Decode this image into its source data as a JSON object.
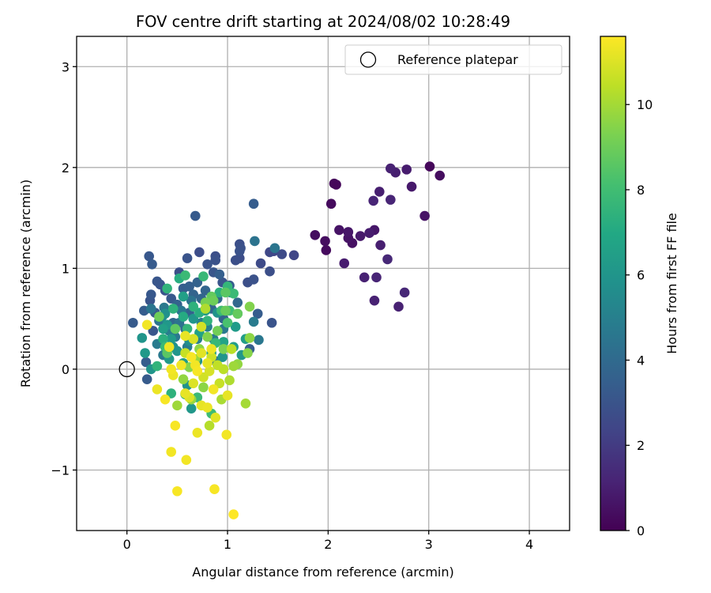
{
  "chart_data": {
    "type": "scatter",
    "title": "FOV centre drift starting at 2024/08/02 10:28:49",
    "xlabel": "Angular distance from reference (arcmin)",
    "ylabel": "Rotation from reference (arcmin)",
    "xlim": [
      -0.5,
      4.4
    ],
    "ylim": [
      -1.6,
      3.3
    ],
    "xticks": [
      0,
      1,
      2,
      3,
      4
    ],
    "xtick_labels": [
      "0",
      "1",
      "2",
      "3",
      "4"
    ],
    "yticks": [
      -1,
      0,
      1,
      2,
      3
    ],
    "ytick_labels": [
      "−1",
      "0",
      "1",
      "2",
      "3"
    ],
    "grid": true,
    "legend": {
      "placement": "top-right",
      "entries": [
        "Reference platepar"
      ]
    },
    "reference_point": {
      "label": "Reference platepar",
      "x": 0,
      "y": 0
    },
    "colorbar": {
      "label": "Hours from first FF file",
      "colormap": "viridis",
      "range": [
        0,
        11.6
      ],
      "ticks": [
        0,
        2,
        4,
        6,
        8,
        10
      ],
      "tick_labels": [
        "0",
        "2",
        "4",
        "6",
        "8",
        "10"
      ]
    },
    "points": [
      {
        "x": 1.87,
        "y": 1.33,
        "h": 0.4
      },
      {
        "x": 1.97,
        "y": 1.27,
        "h": 0.4
      },
      {
        "x": 1.98,
        "y": 1.18,
        "h": 0.3
      },
      {
        "x": 2.03,
        "y": 1.64,
        "h": 0.3
      },
      {
        "x": 2.06,
        "y": 1.84,
        "h": 0.2
      },
      {
        "x": 2.08,
        "y": 1.83,
        "h": 0.2
      },
      {
        "x": 2.11,
        "y": 1.38,
        "h": 0.6
      },
      {
        "x": 2.16,
        "y": 1.05,
        "h": 0.9
      },
      {
        "x": 2.2,
        "y": 1.36,
        "h": 0.7
      },
      {
        "x": 2.2,
        "y": 1.3,
        "h": 0.6
      },
      {
        "x": 2.24,
        "y": 1.25,
        "h": 0.5
      },
      {
        "x": 2.32,
        "y": 1.32,
        "h": 0.8
      },
      {
        "x": 2.36,
        "y": 0.91,
        "h": 1.1
      },
      {
        "x": 2.41,
        "y": 1.35,
        "h": 0.9
      },
      {
        "x": 2.46,
        "y": 1.38,
        "h": 0.7
      },
      {
        "x": 2.45,
        "y": 1.67,
        "h": 1.2
      },
      {
        "x": 2.46,
        "y": 0.68,
        "h": 1.1
      },
      {
        "x": 2.48,
        "y": 0.91,
        "h": 1.2
      },
      {
        "x": 2.51,
        "y": 1.76,
        "h": 1.0
      },
      {
        "x": 2.52,
        "y": 1.23,
        "h": 1.0
      },
      {
        "x": 2.59,
        "y": 1.09,
        "h": 1.3
      },
      {
        "x": 2.62,
        "y": 1.99,
        "h": 1.1
      },
      {
        "x": 2.62,
        "y": 1.68,
        "h": 1.2
      },
      {
        "x": 2.67,
        "y": 1.95,
        "h": 1.0
      },
      {
        "x": 2.7,
        "y": 0.62,
        "h": 1.1
      },
      {
        "x": 2.76,
        "y": 0.76,
        "h": 1.3
      },
      {
        "x": 2.78,
        "y": 1.98,
        "h": 0.9
      },
      {
        "x": 2.83,
        "y": 1.81,
        "h": 0.8
      },
      {
        "x": 2.96,
        "y": 1.52,
        "h": 0.6
      },
      {
        "x": 3.01,
        "y": 2.01,
        "h": 0.2
      },
      {
        "x": 3.11,
        "y": 1.92,
        "h": 0.4
      },
      {
        "x": 0.68,
        "y": 1.52,
        "h": 3.3
      },
      {
        "x": 1.26,
        "y": 1.64,
        "h": 3.4
      },
      {
        "x": 0.22,
        "y": 1.12,
        "h": 3.2
      },
      {
        "x": 0.25,
        "y": 1.04,
        "h": 3.3
      },
      {
        "x": 0.3,
        "y": 0.87,
        "h": 3.1
      },
      {
        "x": 0.33,
        "y": 0.84,
        "h": 3.0
      },
      {
        "x": 0.24,
        "y": 0.74,
        "h": 3.2
      },
      {
        "x": 0.23,
        "y": 0.68,
        "h": 3.0
      },
      {
        "x": 0.17,
        "y": 0.58,
        "h": 3.4
      },
      {
        "x": 0.06,
        "y": 0.46,
        "h": 3.3
      },
      {
        "x": 0.26,
        "y": 0.38,
        "h": 3.1
      },
      {
        "x": 0.28,
        "y": 0.56,
        "h": 3.3
      },
      {
        "x": 0.38,
        "y": 0.78,
        "h": 3.0
      },
      {
        "x": 0.44,
        "y": 0.7,
        "h": 3.2
      },
      {
        "x": 0.52,
        "y": 0.96,
        "h": 2.8
      },
      {
        "x": 0.6,
        "y": 1.1,
        "h": 3.0
      },
      {
        "x": 0.72,
        "y": 1.16,
        "h": 2.7
      },
      {
        "x": 0.8,
        "y": 1.04,
        "h": 3.0
      },
      {
        "x": 0.88,
        "y": 1.12,
        "h": 2.8
      },
      {
        "x": 0.88,
        "y": 1.08,
        "h": 2.9
      },
      {
        "x": 0.86,
        "y": 0.96,
        "h": 3.1
      },
      {
        "x": 0.95,
        "y": 0.86,
        "h": 3.0
      },
      {
        "x": 1.08,
        "y": 1.08,
        "h": 2.8
      },
      {
        "x": 1.12,
        "y": 1.17,
        "h": 2.9
      },
      {
        "x": 1.12,
        "y": 1.24,
        "h": 2.8
      },
      {
        "x": 1.13,
        "y": 1.2,
        "h": 2.9
      },
      {
        "x": 1.12,
        "y": 1.1,
        "h": 2.7
      },
      {
        "x": 1.2,
        "y": 0.86,
        "h": 2.8
      },
      {
        "x": 1.26,
        "y": 0.89,
        "h": 2.9
      },
      {
        "x": 1.33,
        "y": 1.05,
        "h": 2.6
      },
      {
        "x": 1.42,
        "y": 1.16,
        "h": 2.5
      },
      {
        "x": 1.46,
        "y": 1.17,
        "h": 2.4
      },
      {
        "x": 1.54,
        "y": 1.14,
        "h": 2.6
      },
      {
        "x": 1.66,
        "y": 1.13,
        "h": 2.4
      },
      {
        "x": 1.42,
        "y": 0.97,
        "h": 2.8
      },
      {
        "x": 1.3,
        "y": 0.55,
        "h": 3.4
      },
      {
        "x": 1.44,
        "y": 0.46,
        "h": 3.0
      },
      {
        "x": 0.19,
        "y": 0.07,
        "h": 3.4
      },
      {
        "x": 0.2,
        "y": -0.1,
        "h": 3.3
      },
      {
        "x": 0.62,
        "y": 0.82,
        "h": 3.5
      },
      {
        "x": 0.66,
        "y": 0.74,
        "h": 3.7
      },
      {
        "x": 0.74,
        "y": 0.7,
        "h": 3.8
      },
      {
        "x": 0.5,
        "y": 0.64,
        "h": 3.6
      },
      {
        "x": 0.56,
        "y": 0.8,
        "h": 3.4
      },
      {
        "x": 0.7,
        "y": 0.86,
        "h": 3.6
      },
      {
        "x": 0.78,
        "y": 0.78,
        "h": 3.7
      },
      {
        "x": 0.92,
        "y": 0.94,
        "h": 3.5
      },
      {
        "x": 1.02,
        "y": 0.83,
        "h": 3.4
      },
      {
        "x": 1.1,
        "y": 0.66,
        "h": 3.9
      },
      {
        "x": 1.22,
        "y": 0.2,
        "h": 3.5
      },
      {
        "x": 0.46,
        "y": 0.46,
        "h": 3.9
      },
      {
        "x": 0.58,
        "y": 0.4,
        "h": 3.8
      },
      {
        "x": 0.62,
        "y": 0.56,
        "h": 3.6
      },
      {
        "x": 0.9,
        "y": 0.7,
        "h": 3.9
      },
      {
        "x": 0.96,
        "y": 0.5,
        "h": 3.7
      },
      {
        "x": 0.84,
        "y": 0.6,
        "h": 3.8
      },
      {
        "x": 1.27,
        "y": 1.27,
        "h": 4.4
      },
      {
        "x": 1.47,
        "y": 1.2,
        "h": 4.5
      },
      {
        "x": 1.31,
        "y": 0.29,
        "h": 4.6
      },
      {
        "x": 1.26,
        "y": 0.47,
        "h": 4.8
      },
      {
        "x": 1.1,
        "y": 0.55,
        "h": 4.8
      },
      {
        "x": 0.37,
        "y": 0.61,
        "h": 4.7
      },
      {
        "x": 0.32,
        "y": 0.48,
        "h": 4.5
      },
      {
        "x": 0.42,
        "y": 0.38,
        "h": 4.9
      },
      {
        "x": 0.3,
        "y": 0.25,
        "h": 4.8
      },
      {
        "x": 0.36,
        "y": 0.14,
        "h": 4.7
      },
      {
        "x": 0.54,
        "y": 0.58,
        "h": 4.6
      },
      {
        "x": 0.64,
        "y": 0.68,
        "h": 4.4
      },
      {
        "x": 0.74,
        "y": 0.46,
        "h": 4.9
      },
      {
        "x": 0.8,
        "y": 0.42,
        "h": 5.0
      },
      {
        "x": 0.86,
        "y": 0.3,
        "h": 4.8
      },
      {
        "x": 0.96,
        "y": 0.4,
        "h": 4.7
      },
      {
        "x": 0.7,
        "y": 0.3,
        "h": 4.9
      },
      {
        "x": 0.6,
        "y": 0.22,
        "h": 4.8
      },
      {
        "x": 0.52,
        "y": 0.46,
        "h": 4.4
      },
      {
        "x": 0.48,
        "y": 0.32,
        "h": 4.7
      },
      {
        "x": 0.88,
        "y": 0.08,
        "h": 4.6
      },
      {
        "x": 0.24,
        "y": 0.6,
        "h": 4.5
      },
      {
        "x": 0.15,
        "y": 0.31,
        "h": 6.0
      },
      {
        "x": 0.18,
        "y": 0.16,
        "h": 6.2
      },
      {
        "x": 0.24,
        "y": 0.0,
        "h": 6.0
      },
      {
        "x": 0.38,
        "y": 0.55,
        "h": 5.8
      },
      {
        "x": 0.4,
        "y": 0.44,
        "h": 6.1
      },
      {
        "x": 0.44,
        "y": 0.3,
        "h": 6.3
      },
      {
        "x": 0.5,
        "y": 0.18,
        "h": 6.0
      },
      {
        "x": 0.42,
        "y": 0.1,
        "h": 6.2
      },
      {
        "x": 0.56,
        "y": 0.06,
        "h": 6.3
      },
      {
        "x": 0.6,
        "y": -0.16,
        "h": 5.9
      },
      {
        "x": 0.64,
        "y": -0.39,
        "h": 6.1
      },
      {
        "x": 0.66,
        "y": 0.5,
        "h": 6.0
      },
      {
        "x": 0.78,
        "y": 0.58,
        "h": 6.2
      },
      {
        "x": 0.9,
        "y": 0.56,
        "h": 5.9
      },
      {
        "x": 1.03,
        "y": 0.76,
        "h": 6.0
      },
      {
        "x": 1.08,
        "y": 0.42,
        "h": 6.3
      },
      {
        "x": 1.18,
        "y": 0.3,
        "h": 6.4
      },
      {
        "x": 1.14,
        "y": 0.14,
        "h": 6.1
      },
      {
        "x": 1.06,
        "y": 0.22,
        "h": 6.4
      },
      {
        "x": 0.36,
        "y": 0.4,
        "h": 6.5
      },
      {
        "x": 0.72,
        "y": 0.36,
        "h": 6.6
      },
      {
        "x": 0.84,
        "y": 0.16,
        "h": 6.5
      },
      {
        "x": 0.96,
        "y": 0.27,
        "h": 6.7
      },
      {
        "x": 0.56,
        "y": 0.72,
        "h": 6.5
      },
      {
        "x": 0.62,
        "y": 0.28,
        "h": 5.7
      },
      {
        "x": 0.7,
        "y": 0.08,
        "h": 5.9
      },
      {
        "x": 0.46,
        "y": 0.22,
        "h": 5.8
      },
      {
        "x": 0.35,
        "y": 0.52,
        "h": 5.6
      },
      {
        "x": 0.95,
        "y": 0.12,
        "h": 6.0
      },
      {
        "x": 0.4,
        "y": 0.8,
        "h": 7.5
      },
      {
        "x": 0.52,
        "y": 0.9,
        "h": 7.2
      },
      {
        "x": 0.58,
        "y": 0.93,
        "h": 7.8
      },
      {
        "x": 0.66,
        "y": 0.62,
        "h": 7.4
      },
      {
        "x": 0.76,
        "y": 0.92,
        "h": 7.7
      },
      {
        "x": 0.84,
        "y": 0.7,
        "h": 7.9
      },
      {
        "x": 0.92,
        "y": 0.76,
        "h": 7.3
      },
      {
        "x": 1.0,
        "y": 0.82,
        "h": 7.6
      },
      {
        "x": 1.06,
        "y": 0.75,
        "h": 7.8
      },
      {
        "x": 1.02,
        "y": 0.58,
        "h": 8.0
      },
      {
        "x": 0.94,
        "y": 0.58,
        "h": 7.9
      },
      {
        "x": 0.56,
        "y": 0.52,
        "h": 7.1
      },
      {
        "x": 0.46,
        "y": 0.6,
        "h": 7.4
      },
      {
        "x": 0.6,
        "y": 0.4,
        "h": 7.6
      },
      {
        "x": 0.72,
        "y": 0.56,
        "h": 7.2
      },
      {
        "x": 0.8,
        "y": 0.48,
        "h": 7.5
      },
      {
        "x": 0.36,
        "y": 0.3,
        "h": 7.3
      },
      {
        "x": 0.38,
        "y": 0.22,
        "h": 7.8
      },
      {
        "x": 0.3,
        "y": 0.03,
        "h": 7.5
      },
      {
        "x": 0.44,
        "y": -0.24,
        "h": 7.4
      },
      {
        "x": 0.58,
        "y": -0.25,
        "h": 7.6
      },
      {
        "x": 0.7,
        "y": -0.28,
        "h": 7.8
      },
      {
        "x": 0.84,
        "y": -0.44,
        "h": 7.9
      },
      {
        "x": 0.88,
        "y": 0.26,
        "h": 7.7
      },
      {
        "x": 1.0,
        "y": 0.46,
        "h": 8.2
      },
      {
        "x": 0.84,
        "y": 0.72,
        "h": 8.8
      },
      {
        "x": 0.86,
        "y": 0.68,
        "h": 9.0
      },
      {
        "x": 0.78,
        "y": 0.66,
        "h": 9.2
      },
      {
        "x": 0.98,
        "y": 0.76,
        "h": 8.6
      },
      {
        "x": 0.98,
        "y": 0.58,
        "h": 8.9
      },
      {
        "x": 1.1,
        "y": 0.55,
        "h": 8.8
      },
      {
        "x": 1.22,
        "y": 0.62,
        "h": 9.4
      },
      {
        "x": 1.22,
        "y": 0.31,
        "h": 9.6
      },
      {
        "x": 1.2,
        "y": 0.16,
        "h": 9.5
      },
      {
        "x": 1.1,
        "y": 0.05,
        "h": 9.7
      },
      {
        "x": 1.06,
        "y": 0.03,
        "h": 9.9
      },
      {
        "x": 0.96,
        "y": 0.2,
        "h": 9.3
      },
      {
        "x": 0.9,
        "y": 0.38,
        "h": 9.1
      },
      {
        "x": 0.8,
        "y": 0.32,
        "h": 9.4
      },
      {
        "x": 0.72,
        "y": 0.2,
        "h": 9.6
      },
      {
        "x": 0.68,
        "y": 0.1,
        "h": 9.8
      },
      {
        "x": 0.62,
        "y": 0.02,
        "h": 9.5
      },
      {
        "x": 0.56,
        "y": -0.1,
        "h": 9.7
      },
      {
        "x": 0.5,
        "y": -0.36,
        "h": 9.9
      },
      {
        "x": 0.64,
        "y": -0.3,
        "h": 9.8
      },
      {
        "x": 0.76,
        "y": -0.18,
        "h": 9.6
      },
      {
        "x": 0.94,
        "y": -0.3,
        "h": 10.1
      },
      {
        "x": 1.02,
        "y": -0.11,
        "h": 10.2
      },
      {
        "x": 1.18,
        "y": -0.34,
        "h": 10.0
      },
      {
        "x": 0.82,
        "y": -0.56,
        "h": 10.3
      },
      {
        "x": 0.4,
        "y": 0.16,
        "h": 8.6
      },
      {
        "x": 0.48,
        "y": 0.4,
        "h": 8.7
      },
      {
        "x": 0.32,
        "y": 0.52,
        "h": 9.0
      },
      {
        "x": 1.04,
        "y": 0.2,
        "h": 10.4
      },
      {
        "x": 0.9,
        "y": 0.04,
        "h": 10.5
      },
      {
        "x": 0.84,
        "y": 0.12,
        "h": 10.7
      },
      {
        "x": 0.92,
        "y": -0.14,
        "h": 10.6
      },
      {
        "x": 0.78,
        "y": 0.6,
        "h": 10.2
      },
      {
        "x": 0.74,
        "y": 0.42,
        "h": 10.8
      },
      {
        "x": 0.66,
        "y": 0.3,
        "h": 10.9
      },
      {
        "x": 0.58,
        "y": 0.16,
        "h": 10.6
      },
      {
        "x": 0.82,
        "y": -0.02,
        "h": 10.9
      },
      {
        "x": 0.76,
        "y": -0.08,
        "h": 10.8
      },
      {
        "x": 0.66,
        "y": -0.14,
        "h": 11.0
      },
      {
        "x": 0.96,
        "y": 0.0,
        "h": 10.4
      },
      {
        "x": 0.2,
        "y": 0.44,
        "h": 11.4
      },
      {
        "x": 0.3,
        "y": -0.2,
        "h": 11.3
      },
      {
        "x": 0.38,
        "y": -0.3,
        "h": 11.5
      },
      {
        "x": 0.44,
        "y": 0.0,
        "h": 11.4
      },
      {
        "x": 0.46,
        "y": -0.06,
        "h": 11.3
      },
      {
        "x": 0.48,
        "y": -0.56,
        "h": 11.5
      },
      {
        "x": 0.44,
        "y": -0.82,
        "h": 11.4
      },
      {
        "x": 0.5,
        "y": -1.21,
        "h": 11.5
      },
      {
        "x": 0.59,
        "y": -0.9,
        "h": 11.4
      },
      {
        "x": 0.7,
        "y": -0.63,
        "h": 11.3
      },
      {
        "x": 0.87,
        "y": -1.19,
        "h": 11.5
      },
      {
        "x": 0.99,
        "y": -0.65,
        "h": 11.4
      },
      {
        "x": 1.06,
        "y": -1.44,
        "h": 11.6
      },
      {
        "x": 0.58,
        "y": -0.24,
        "h": 11.2
      },
      {
        "x": 0.62,
        "y": -0.28,
        "h": 11.0
      },
      {
        "x": 0.74,
        "y": -0.36,
        "h": 11.2
      },
      {
        "x": 0.8,
        "y": -0.38,
        "h": 11.3
      },
      {
        "x": 0.88,
        "y": -0.48,
        "h": 11.1
      },
      {
        "x": 0.42,
        "y": 0.22,
        "h": 11.3
      },
      {
        "x": 0.58,
        "y": 0.33,
        "h": 11.2
      },
      {
        "x": 0.68,
        "y": 0.04,
        "h": 11.4
      },
      {
        "x": 0.74,
        "y": 0.16,
        "h": 11.1
      },
      {
        "x": 0.84,
        "y": 0.2,
        "h": 11.3
      },
      {
        "x": 1.0,
        "y": -0.26,
        "h": 11.2
      },
      {
        "x": 0.54,
        "y": 0.04,
        "h": 11.4
      },
      {
        "x": 0.64,
        "y": 0.12,
        "h": 11.5
      },
      {
        "x": 0.86,
        "y": -0.2,
        "h": 11.4
      },
      {
        "x": 0.8,
        "y": 0.06,
        "h": 11.2
      },
      {
        "x": 0.7,
        "y": -0.02,
        "h": 11.5
      }
    ]
  }
}
